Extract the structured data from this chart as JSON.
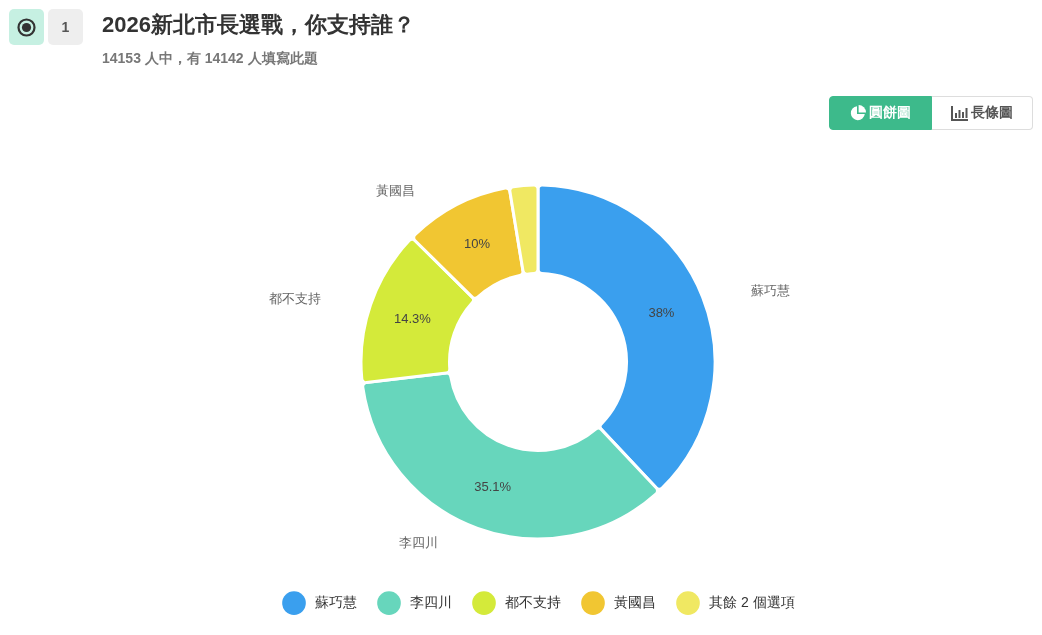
{
  "chart_data": {
    "type": "donut",
    "title": "2026新北市長選戰，你支持誰？",
    "subtitle": "14153 人中，有 14142 人填寫此題",
    "categories": [
      "蘇巧慧",
      "李四川",
      "都不支持",
      "黃國昌",
      "其餘 2 個選項"
    ],
    "values": [
      38,
      35.1,
      14.3,
      10,
      2.6
    ],
    "colors": [
      "#3a9fee",
      "#67d6bc",
      "#d4ea3a",
      "#f1c632",
      "#f0e862"
    ],
    "value_labels": [
      "38%",
      "35.1%",
      "14.3%",
      "10%",
      null
    ],
    "legend": "bottom",
    "annotations": [
      "1",
      "圓餅圖",
      "長條圖"
    ]
  }
}
